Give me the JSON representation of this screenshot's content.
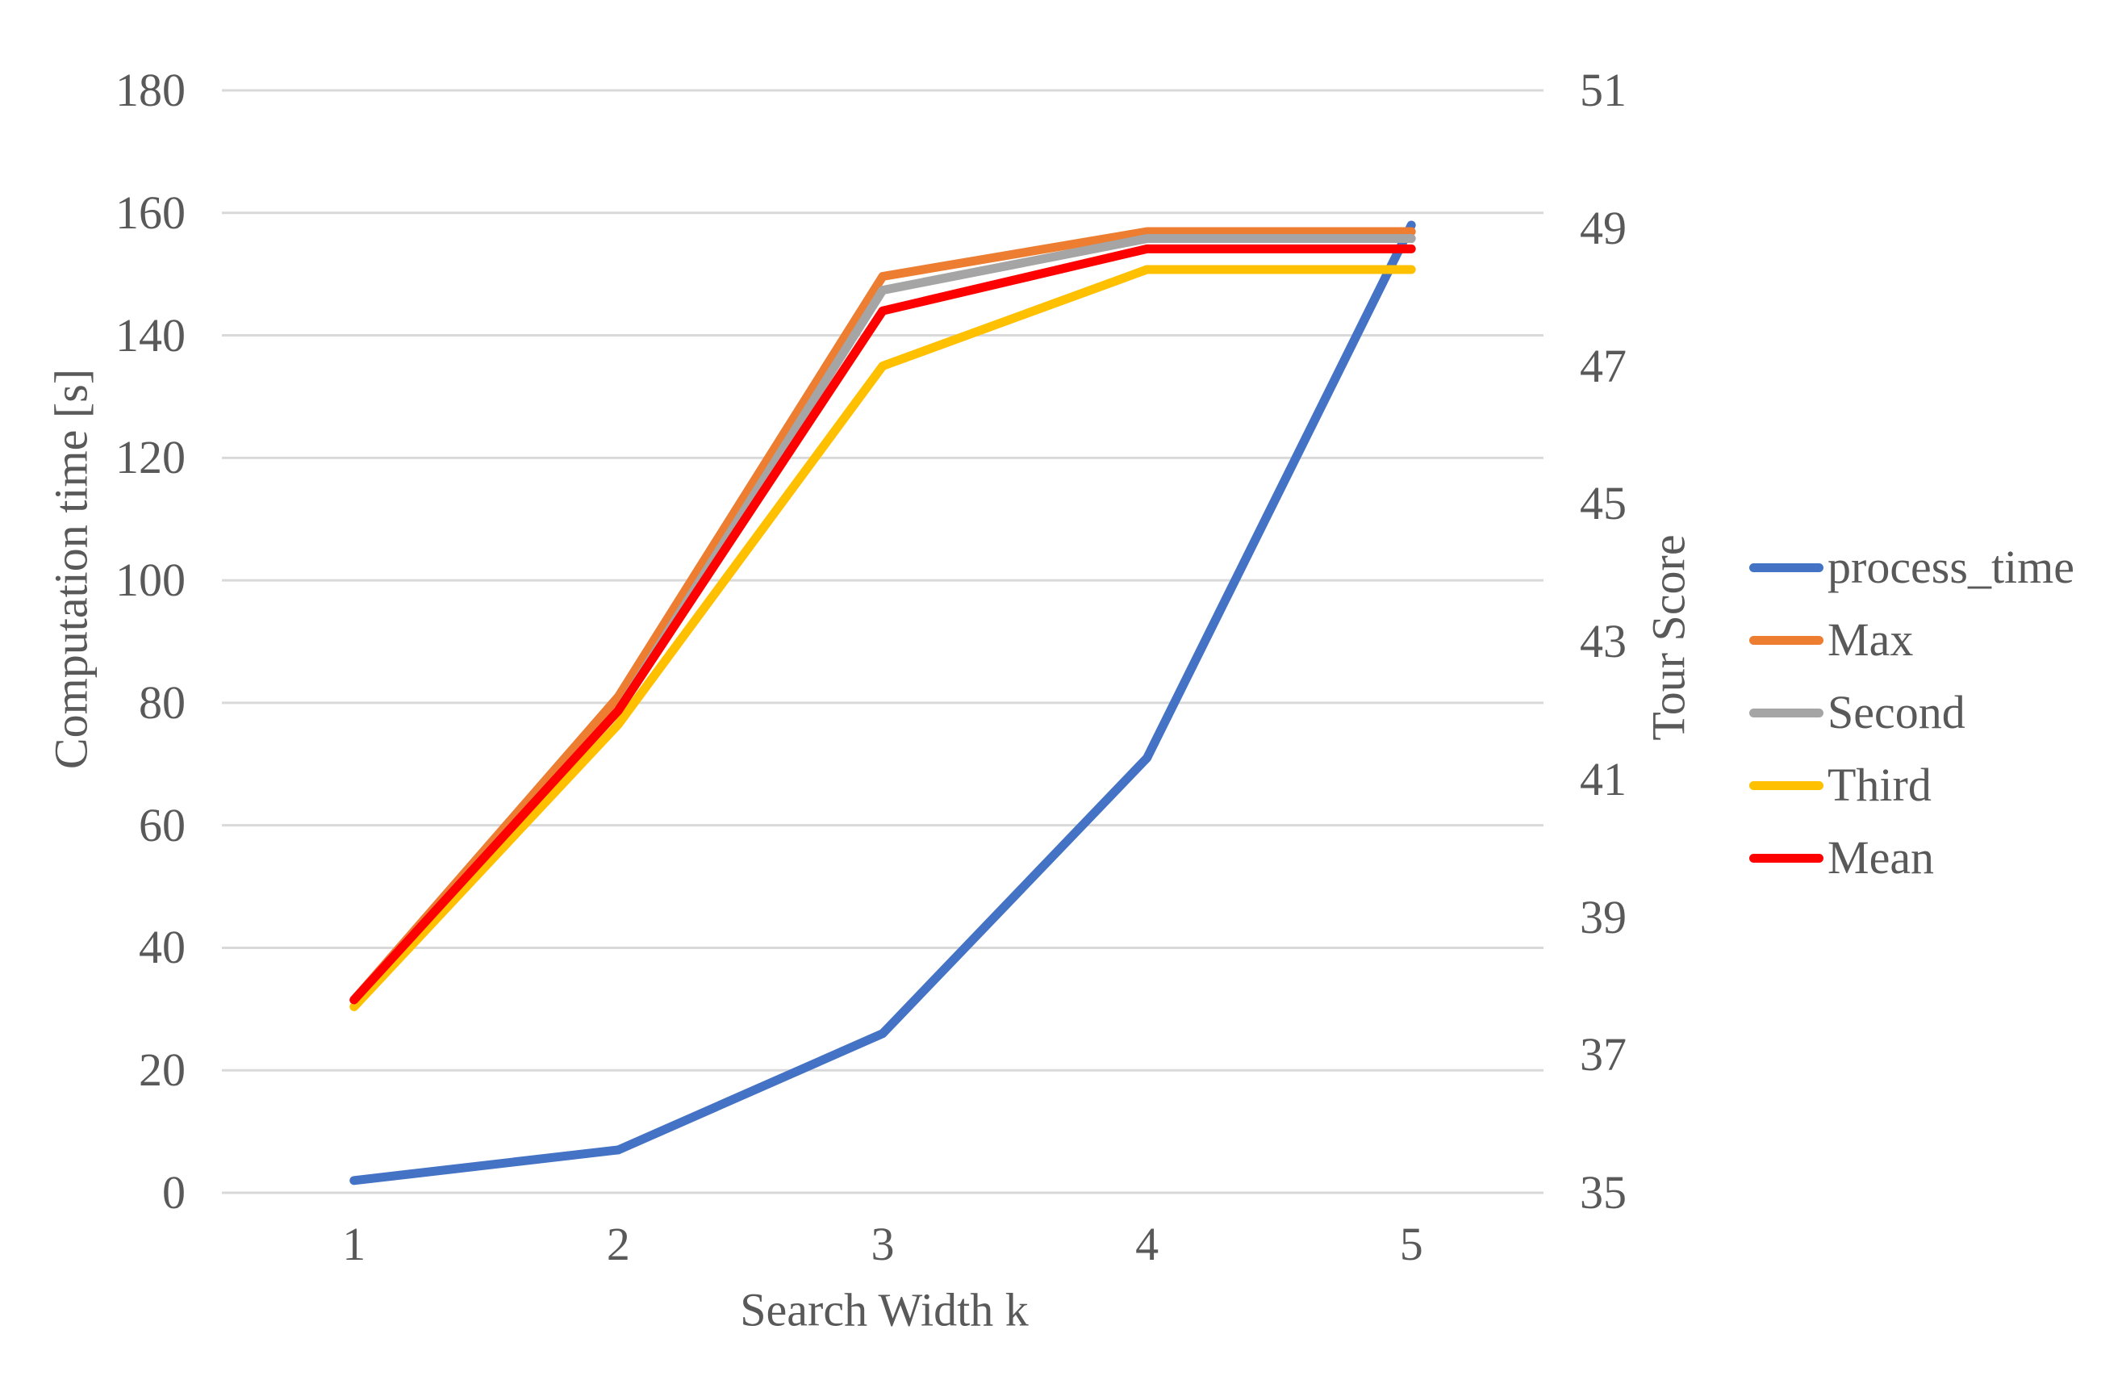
{
  "chart_data": {
    "type": "line",
    "title": "",
    "x_axis": {
      "title": "Search Width k",
      "ticks": [
        "1",
        "2",
        "3",
        "4",
        "5"
      ]
    },
    "left_axis": {
      "title": "Computation time [s]",
      "min": 0,
      "max": 180,
      "tick_step": 20,
      "ticks_top_to_bottom": [
        "180",
        "160",
        "140",
        "120",
        "100",
        "80",
        "60",
        "40",
        "20",
        "0"
      ]
    },
    "right_axis": {
      "title": "Tour Score",
      "min": 35,
      "max": 51,
      "tick_step": 2,
      "ticks_top_to_bottom": [
        "51",
        "49",
        "47",
        "45",
        "43",
        "41",
        "39",
        "37",
        "35"
      ]
    },
    "categories": [
      1,
      2,
      3,
      4,
      5
    ],
    "series": [
      {
        "name": "process_time",
        "axis": "left",
        "color": "#4472C4",
        "values": [
          2,
          7,
          26,
          71,
          158
        ]
      },
      {
        "name": "Max",
        "axis": "right",
        "color": "#ED7D31",
        "values": [
          37.8,
          42.2,
          48.3,
          48.95,
          48.95
        ]
      },
      {
        "name": "Second",
        "axis": "right",
        "color": "#A5A5A5",
        "values": [
          37.8,
          42.0,
          48.1,
          48.85,
          48.85
        ]
      },
      {
        "name": "Third",
        "axis": "right",
        "color": "#FFC000",
        "values": [
          37.7,
          41.8,
          47.0,
          48.4,
          48.4
        ]
      },
      {
        "name": "Mean",
        "axis": "right",
        "color": "#FF0000",
        "values": [
          37.8,
          42.0,
          47.8,
          48.7,
          48.7
        ]
      }
    ],
    "grid": true,
    "legend_position": "right",
    "legend_order": [
      "process_time",
      "Max",
      "Second",
      "Third",
      "Mean"
    ],
    "colors": {
      "gridline": "#D9D9D9",
      "axis_text": "#595959",
      "background": "#FFFFFF"
    }
  }
}
